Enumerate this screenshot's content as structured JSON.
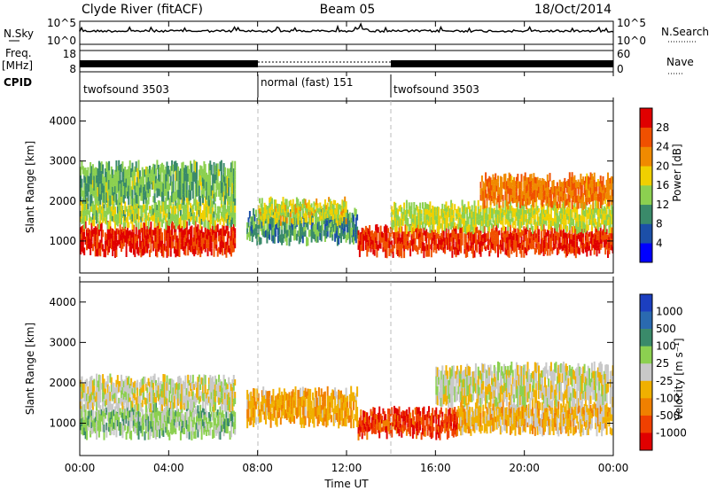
{
  "header": {
    "station": "Clyde River (fitACF)",
    "beam": "Beam 05",
    "date": "18/Oct/2014"
  },
  "noise_panel": {
    "left_label": "N.Sky",
    "right_label": "N.Search",
    "tick_top": "10^5",
    "tick_bottom": "10^0"
  },
  "freq_panel": {
    "left_label_1": "Freq.",
    "left_label_2": "[MHz]",
    "left_tick_top": "18",
    "left_tick_bottom": "8",
    "right_label": "Nave",
    "right_tick_top": "60",
    "right_tick_bottom": "0"
  },
  "cpid": {
    "label": "CPID",
    "segments": [
      {
        "name": "twofsound 3503",
        "start_h": 0,
        "end_h": 8
      },
      {
        "name": "normal (fast) 151",
        "start_h": 8,
        "end_h": 14
      },
      {
        "name": "twofsound 3503",
        "start_h": 14,
        "end_h": 24
      }
    ]
  },
  "x_axis": {
    "label": "Time UT",
    "ticks": [
      "00:00",
      "04:00",
      "08:00",
      "12:00",
      "16:00",
      "20:00",
      "00:00"
    ],
    "range_h": [
      0,
      24
    ]
  },
  "power_panel": {
    "ylabel": "Slant Range [km]",
    "yticks": [
      "1000",
      "2000",
      "3000",
      "4000"
    ],
    "colorbar_label": "Power [dB]",
    "colorbar_ticks": [
      "4",
      "8",
      "12",
      "16",
      "20",
      "24",
      "28"
    ],
    "colors": [
      "#0000ff",
      "#1c4fa8",
      "#3a8a6a",
      "#8cd050",
      "#f0d000",
      "#f08a00",
      "#f05000",
      "#e00000"
    ]
  },
  "velocity_panel": {
    "ylabel": "Slant Range [km]",
    "yticks": [
      "1000",
      "2000",
      "3000",
      "4000"
    ],
    "colorbar_label": "Velocity [m s⁻¹]",
    "colorbar_ticks": [
      "1000",
      "500",
      "100",
      "25",
      "-25",
      "-100",
      "-500",
      "-1000"
    ],
    "colors": [
      "#1c3fc0",
      "#2a6ab0",
      "#3a8a6a",
      "#8cd050",
      "#c8c8c8",
      "#f0b000",
      "#f08000",
      "#f04000",
      "#e00000"
    ]
  },
  "chart_data": [
    {
      "type": "heatmap",
      "title": "Power [dB]",
      "xlabel": "Time UT",
      "ylabel": "Slant Range [km]",
      "xlim": [
        0,
        24
      ],
      "ylim": [
        200,
        4500
      ],
      "clim": [
        0,
        30
      ],
      "regions": [
        {
          "x": [
            0,
            7
          ],
          "y": [
            700,
            1400
          ],
          "value": 27
        },
        {
          "x": [
            0,
            7
          ],
          "y": [
            1400,
            2000
          ],
          "value": 14
        },
        {
          "x": [
            0,
            7
          ],
          "y": [
            2000,
            2900
          ],
          "value": 12
        },
        {
          "x": [
            7.5,
            12.5
          ],
          "y": [
            1000,
            1700
          ],
          "value": 10
        },
        {
          "x": [
            8,
            12
          ],
          "y": [
            1500,
            2000
          ],
          "value": 16
        },
        {
          "x": [
            12.5,
            24
          ],
          "y": [
            700,
            1300
          ],
          "value": 26
        },
        {
          "x": [
            14,
            24
          ],
          "y": [
            1300,
            1900
          ],
          "value": 15
        },
        {
          "x": [
            18,
            24
          ],
          "y": [
            1900,
            2600
          ],
          "value": 22
        }
      ]
    },
    {
      "type": "heatmap",
      "title": "Velocity [m s⁻¹]",
      "xlabel": "Time UT",
      "ylabel": "Slant Range [km]",
      "xlim": [
        0,
        24
      ],
      "ylim": [
        200,
        4500
      ],
      "clim": [
        -1000,
        1000
      ],
      "regions": [
        {
          "x": [
            0,
            7
          ],
          "y": [
            700,
            1400
          ],
          "value": 200
        },
        {
          "x": [
            0,
            7
          ],
          "y": [
            1400,
            2100
          ],
          "value": 0
        },
        {
          "x": [
            7.5,
            12.5
          ],
          "y": [
            1000,
            1800
          ],
          "value": -300
        },
        {
          "x": [
            12.5,
            17
          ],
          "y": [
            700,
            1300
          ],
          "value": -700
        },
        {
          "x": [
            17,
            24
          ],
          "y": [
            800,
            1500
          ],
          "value": -200
        },
        {
          "x": [
            16,
            24
          ],
          "y": [
            1500,
            2400
          ],
          "value": 0
        }
      ]
    }
  ]
}
